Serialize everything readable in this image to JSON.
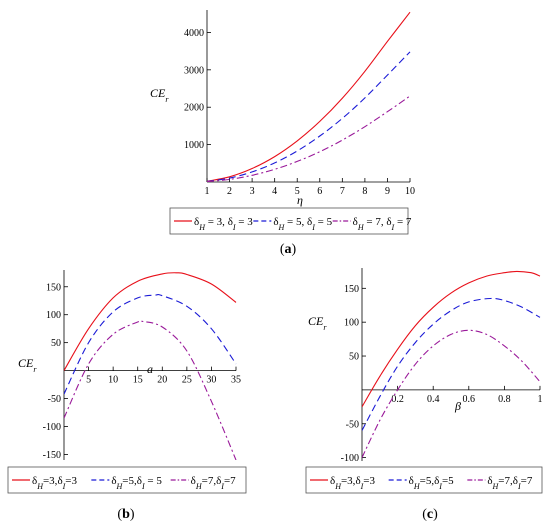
{
  "chart_data": [
    {
      "panel": "a",
      "caption": "(a)",
      "type": "line",
      "xlabel": "η",
      "ylabel": "CE",
      "ylabel_sub": "r",
      "xlim": [
        1,
        10
      ],
      "ylim": [
        0,
        4600
      ],
      "xticks": [
        1,
        2,
        3,
        4,
        5,
        6,
        7,
        8,
        9,
        10
      ],
      "yticks": [
        1000,
        2000,
        3000,
        4000
      ],
      "legend_position": "bottom",
      "series": [
        {
          "name": "δH = 3, δI = 3",
          "color": "#e8101a",
          "dash": "",
          "x": [
            1,
            2,
            3,
            4,
            5,
            6,
            7,
            8,
            9,
            10
          ],
          "y": [
            20,
            140,
            360,
            680,
            1100,
            1620,
            2240,
            2960,
            3760,
            4540
          ]
        },
        {
          "name": "δH = 5, δI = 5",
          "color": "#1b1bd6",
          "dash": "7,4",
          "x": [
            1,
            2,
            3,
            4,
            5,
            6,
            7,
            8,
            9,
            10
          ],
          "y": [
            15,
            105,
            270,
            510,
            830,
            1230,
            1700,
            2250,
            2860,
            3480
          ]
        },
        {
          "name": "δH = 7, δI = 7",
          "color": "#9a1a9a",
          "dash": "7,3,2,3",
          "x": [
            1,
            2,
            3,
            4,
            5,
            6,
            7,
            8,
            9,
            10
          ],
          "y": [
            10,
            70,
            180,
            340,
            550,
            810,
            1120,
            1480,
            1880,
            2300
          ]
        }
      ]
    },
    {
      "panel": "b",
      "caption": "(b)",
      "type": "line",
      "xlabel": "a",
      "ylabel": "CE",
      "ylabel_sub": "r",
      "xlim": [
        0,
        35
      ],
      "ylim": [
        -160,
        180
      ],
      "xticks": [
        5,
        10,
        15,
        20,
        25,
        30,
        35
      ],
      "yticks": [
        -150,
        -100,
        -50,
        50,
        100,
        150
      ],
      "legend_position": "bottom",
      "series": [
        {
          "name": "δH=3,δI=3",
          "color": "#e8101a",
          "dash": "",
          "x": [
            0,
            5,
            10,
            15,
            20,
            23,
            25,
            30,
            35
          ],
          "y": [
            0,
            75,
            130,
            160,
            173,
            175,
            172,
            155,
            122
          ]
        },
        {
          "name": "δH=5,δI = 5",
          "color": "#1b1bd6",
          "dash": "7,4",
          "x": [
            0,
            5,
            10,
            15,
            18.5,
            20,
            25,
            30,
            35
          ],
          "y": [
            -42,
            50,
            105,
            130,
            135,
            134,
            115,
            75,
            12
          ]
        },
        {
          "name": "δH=7,δI=7",
          "color": "#9a1a9a",
          "dash": "7,3,2,3",
          "x": [
            0,
            5,
            10,
            15,
            16,
            20,
            25,
            30,
            35
          ],
          "y": [
            -85,
            12,
            65,
            87,
            88,
            78,
            35,
            -55,
            -160
          ]
        }
      ]
    },
    {
      "panel": "c",
      "caption": "(c)",
      "type": "line",
      "xlabel": "β",
      "ylabel": "CE",
      "ylabel_sub": "r",
      "xlim": [
        0,
        1
      ],
      "ylim": [
        -105,
        180
      ],
      "xticks": [
        0.2,
        0.4,
        0.6,
        0.8,
        1
      ],
      "xtick_labels": [
        "0.2",
        "0.4",
        "0.6",
        "0.8",
        "1"
      ],
      "yticks": [
        -100,
        -50,
        50,
        100,
        150
      ],
      "legend_position": "bottom",
      "series": [
        {
          "name": "δH=3,δI=3",
          "color": "#e8101a",
          "dash": "",
          "x": [
            0,
            0.1,
            0.2,
            0.3,
            0.4,
            0.5,
            0.6,
            0.7,
            0.8,
            0.87,
            0.95,
            1
          ],
          "y": [
            -25,
            20,
            60,
            95,
            122,
            143,
            158,
            168,
            173,
            175,
            173,
            168
          ]
        },
        {
          "name": "δH=5,δI=5",
          "color": "#1b1bd6",
          "dash": "7,4",
          "x": [
            0,
            0.1,
            0.2,
            0.3,
            0.4,
            0.5,
            0.6,
            0.72,
            0.8,
            0.9,
            1
          ],
          "y": [
            -60,
            -10,
            35,
            70,
            97,
            117,
            130,
            135,
            132,
            122,
            107
          ]
        },
        {
          "name": "δH=7,δI=7",
          "color": "#9a1a9a",
          "dash": "7,3,2,3",
          "x": [
            0,
            0.1,
            0.2,
            0.3,
            0.4,
            0.5,
            0.6,
            0.7,
            0.8,
            0.9,
            1
          ],
          "y": [
            -100,
            -45,
            0,
            38,
            65,
            82,
            88,
            82,
            65,
            42,
            12
          ]
        }
      ]
    }
  ]
}
